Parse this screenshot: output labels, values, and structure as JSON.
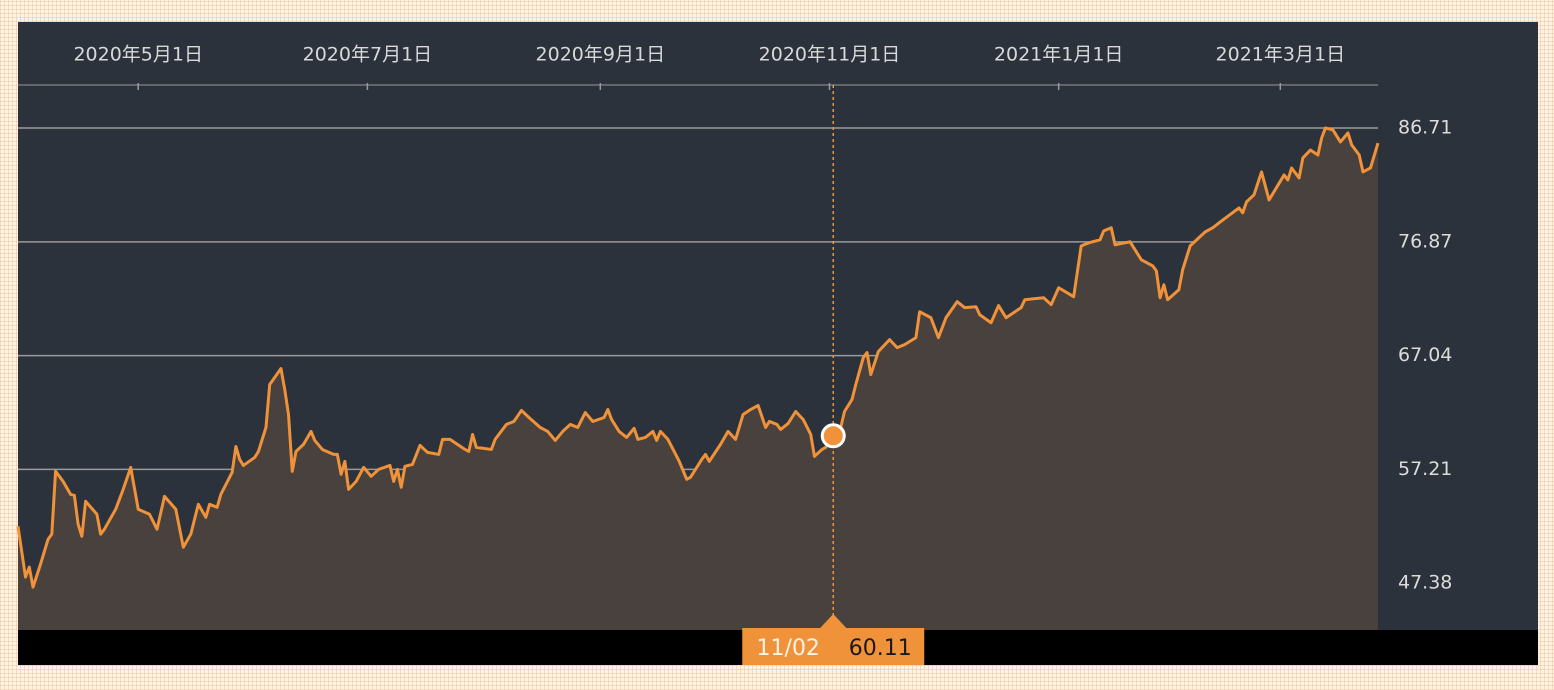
{
  "chart_data": {
    "type": "area",
    "color": "#f0923a",
    "xlim": [
      "2020-03-30",
      "2021-03-27"
    ],
    "xticks": [
      {
        "value": "2020-05-01",
        "label": "2020年5月1日"
      },
      {
        "value": "2020-07-01",
        "label": "2020年7月1日"
      },
      {
        "value": "2020-09-01",
        "label": "2020年9月1日"
      },
      {
        "value": "2020-11-01",
        "label": "2020年11月1日"
      },
      {
        "value": "2021-01-01",
        "label": "2021年1月1日"
      },
      {
        "value": "2021-03-01",
        "label": "2021年3月1日"
      }
    ],
    "ylim": [
      43.33,
      90.42
    ],
    "yticks": [
      47.38,
      57.21,
      67.04,
      76.87,
      86.71
    ],
    "grid": true,
    "x": [
      "2020-03-30",
      "2020-04-01",
      "2020-04-02",
      "2020-04-03",
      "2020-04-05",
      "2020-04-07",
      "2020-04-08",
      "2020-04-09",
      "2020-04-11",
      "2020-04-13",
      "2020-04-14",
      "2020-04-15",
      "2020-04-16",
      "2020-04-17",
      "2020-04-20",
      "2020-04-21",
      "2020-04-22",
      "2020-04-25",
      "2020-04-27",
      "2020-04-29",
      "2020-05-01",
      "2020-05-04",
      "2020-05-06",
      "2020-05-08",
      "2020-05-11",
      "2020-05-13",
      "2020-05-15",
      "2020-05-17",
      "2020-05-19",
      "2020-05-20",
      "2020-05-22",
      "2020-05-23",
      "2020-05-26",
      "2020-05-27",
      "2020-05-28",
      "2020-05-29",
      "2020-06-01",
      "2020-06-02",
      "2020-06-04",
      "2020-06-05",
      "2020-06-08",
      "2020-06-09",
      "2020-06-10",
      "2020-06-11",
      "2020-06-12",
      "2020-06-14",
      "2020-06-16",
      "2020-06-17",
      "2020-06-19",
      "2020-06-22",
      "2020-06-23",
      "2020-06-24",
      "2020-06-25",
      "2020-06-26",
      "2020-06-28",
      "2020-06-30",
      "2020-07-02",
      "2020-07-04",
      "2020-07-07",
      "2020-07-08",
      "2020-07-09",
      "2020-07-10",
      "2020-07-11",
      "2020-07-13",
      "2020-07-15",
      "2020-07-17",
      "2020-07-20",
      "2020-07-21",
      "2020-07-23",
      "2020-07-27",
      "2020-07-28",
      "2020-07-29",
      "2020-07-30",
      "2020-08-03",
      "2020-08-04",
      "2020-08-07",
      "2020-08-09",
      "2020-08-11",
      "2020-08-13",
      "2020-08-16",
      "2020-08-18",
      "2020-08-20",
      "2020-08-22",
      "2020-08-24",
      "2020-08-26",
      "2020-08-28",
      "2020-08-30",
      "2020-09-02",
      "2020-09-03",
      "2020-09-04",
      "2020-09-06",
      "2020-09-08",
      "2020-09-10",
      "2020-09-11",
      "2020-09-13",
      "2020-09-15",
      "2020-09-16",
      "2020-09-17",
      "2020-09-19",
      "2020-09-22",
      "2020-09-24",
      "2020-09-25",
      "2020-09-28",
      "2020-09-29",
      "2020-09-30",
      "2020-10-03",
      "2020-10-05",
      "2020-10-07",
      "2020-10-09",
      "2020-10-11",
      "2020-10-13",
      "2020-10-15",
      "2020-10-16",
      "2020-10-18",
      "2020-10-19",
      "2020-10-21",
      "2020-10-23",
      "2020-10-25",
      "2020-10-27",
      "2020-10-28",
      "2020-10-30",
      "2020-10-31",
      "2020-11-02",
      "2020-11-04",
      "2020-11-05",
      "2020-11-07",
      "2020-11-08",
      "2020-11-10",
      "2020-11-11",
      "2020-11-12",
      "2020-11-14",
      "2020-11-17",
      "2020-11-19",
      "2020-11-21",
      "2020-11-24",
      "2020-11-25",
      "2020-11-28",
      "2020-11-30",
      "2020-12-02",
      "2020-12-05",
      "2020-12-07",
      "2020-12-10",
      "2020-12-11",
      "2020-12-14",
      "2020-12-16",
      "2020-12-18",
      "2020-12-22",
      "2020-12-23",
      "2020-12-28",
      "2020-12-30",
      "2021-01-01",
      "2021-01-05",
      "2021-01-07",
      "2021-01-09",
      "2021-01-12",
      "2021-01-13",
      "2021-01-15",
      "2021-01-16",
      "2021-01-20",
      "2021-01-23",
      "2021-01-26",
      "2021-01-27",
      "2021-01-28",
      "2021-01-29",
      "2021-01-30",
      "2021-02-02",
      "2021-02-03",
      "2021-02-05",
      "2021-02-09",
      "2021-02-11",
      "2021-02-13",
      "2021-02-18",
      "2021-02-19",
      "2021-02-20",
      "2021-02-22",
      "2021-02-24",
      "2021-02-26",
      "2021-03-02",
      "2021-03-03",
      "2021-03-04",
      "2021-03-06",
      "2021-03-07",
      "2021-03-09",
      "2021-03-11",
      "2021-03-12",
      "2021-03-13",
      "2021-03-15",
      "2021-03-17",
      "2021-03-19",
      "2021-03-20",
      "2021-03-22",
      "2021-03-23",
      "2021-03-25",
      "2021-03-27"
    ],
    "values": [
      52.29,
      47.9,
      48.76,
      47.03,
      49.02,
      51.17,
      51.61,
      57.04,
      56.17,
      55.05,
      54.97,
      52.47,
      51.43,
      54.45,
      53.33,
      51.61,
      52.04,
      53.76,
      55.48,
      57.38,
      53.76,
      53.33,
      52.04,
      54.88,
      53.76,
      50.48,
      51.61,
      54.19,
      53.07,
      54.19,
      53.93,
      55.05,
      56.95,
      59.19,
      58.07,
      57.55,
      58.24,
      58.76,
      60.83,
      64.54,
      65.92,
      64.11,
      61.95,
      57.04,
      58.76,
      59.37,
      60.49,
      59.71,
      58.93,
      58.5,
      58.5,
      56.78,
      57.9,
      55.48,
      56.17,
      57.38,
      56.61,
      57.21,
      57.55,
      56.17,
      57.21,
      55.66,
      57.47,
      57.64,
      59.28,
      58.68,
      58.5,
      59.8,
      59.8,
      58.93,
      58.76,
      60.23,
      59.11,
      58.93,
      59.8,
      61.09,
      61.35,
      62.3,
      61.69,
      60.83,
      60.49,
      59.71,
      60.49,
      61.09,
      60.83,
      62.12,
      61.35,
      61.69,
      62.38,
      61.52,
      60.49,
      59.97,
      60.75,
      59.8,
      59.97,
      60.49,
      59.71,
      60.49,
      59.8,
      57.9,
      56.35,
      56.52,
      58.07,
      58.5,
      57.9,
      59.37,
      60.49,
      59.8,
      61.95,
      62.38,
      62.73,
      60.83,
      61.35,
      61.09,
      60.66,
      61.18,
      62.21,
      61.52,
      60.23,
      58.33,
      58.93,
      59.11,
      60.11,
      60.83,
      62.21,
      63.25,
      64.54,
      66.87,
      67.3,
      65.4,
      67.39,
      68.42,
      67.73,
      67.99,
      68.59,
      70.83,
      70.31,
      68.59,
      70.31,
      71.7,
      71.18,
      71.26,
      70.57,
      69.88,
      71.36,
      70.31,
      71.18,
      71.87,
      72.04,
      71.44,
      72.9,
      72.13,
      76.52,
      76.78,
      77.04,
      77.82,
      78.08,
      76.61,
      76.87,
      75.32,
      74.8,
      74.37,
      72.04,
      73.16,
      71.87,
      72.73,
      74.45,
      76.52,
      77.73,
      78.08,
      78.59,
      79.8,
      79.38,
      80.32,
      80.93,
      82.91,
      80.49,
      82.65,
      82.21,
      83.25,
      82.39,
      84.12,
      84.8,
      84.37,
      85.84,
      86.71,
      86.54,
      85.5,
      86.28,
      85.24,
      84.37,
      82.91,
      83.25,
      85.4
    ],
    "highlight": {
      "x": "2020-11-02",
      "label": "11/02",
      "value": 60.11
    }
  }
}
